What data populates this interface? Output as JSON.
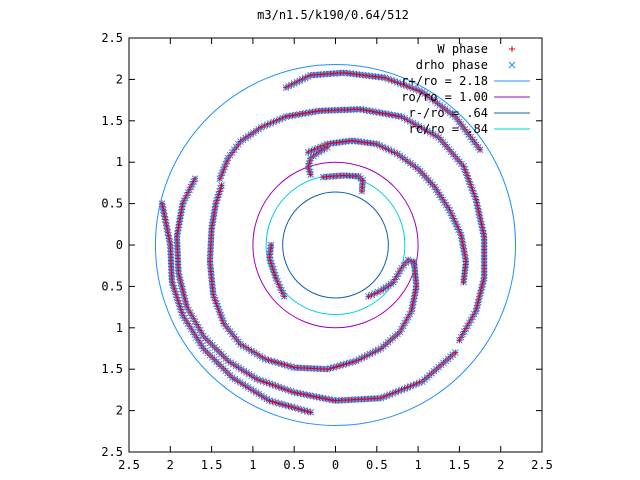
{
  "chart_data": {
    "type": "scatter",
    "title": "m3/n1.5/k190/0.64/512",
    "xlabel": "",
    "ylabel": "",
    "xlim": [
      -2.5,
      2.5
    ],
    "ylim": [
      -2.5,
      2.5
    ],
    "x_ticks": [
      {
        "v": -2.5,
        "label": "2.5"
      },
      {
        "v": -2.0,
        "label": "2"
      },
      {
        "v": -1.5,
        "label": "1.5"
      },
      {
        "v": -1.0,
        "label": "1"
      },
      {
        "v": -0.5,
        "label": "0.5"
      },
      {
        "v": 0.0,
        "label": "0"
      },
      {
        "v": 0.5,
        "label": "0.5"
      },
      {
        "v": 1.0,
        "label": "1"
      },
      {
        "v": 1.5,
        "label": "1.5"
      },
      {
        "v": 2.0,
        "label": "2"
      },
      {
        "v": 2.5,
        "label": "2.5"
      }
    ],
    "y_ticks": [
      {
        "v": 2.5,
        "label": "2.5"
      },
      {
        "v": 2.0,
        "label": "2"
      },
      {
        "v": 1.5,
        "label": "1.5"
      },
      {
        "v": 1.0,
        "label": "1"
      },
      {
        "v": 0.5,
        "label": "0.5"
      },
      {
        "v": 0.0,
        "label": "0"
      },
      {
        "v": -0.5,
        "label": "0.5"
      },
      {
        "v": -1.0,
        "label": "1"
      },
      {
        "v": -1.5,
        "label": "1.5"
      },
      {
        "v": -2.0,
        "label": "2"
      },
      {
        "v": -2.5,
        "label": "2.5"
      }
    ],
    "grid": false,
    "legend_position": "top-right",
    "series": [
      {
        "name": "W phase",
        "marker": "plus",
        "color": "#e0001c"
      },
      {
        "name": "drho phase",
        "marker": "cross",
        "color": "#1f8fff"
      }
    ],
    "circles": [
      {
        "name": "r+/ro = 2.18",
        "radius": 2.18,
        "color": "#1f8fff"
      },
      {
        "name": "ro/ro = 1.00",
        "radius": 1.0,
        "color": "#a000c0"
      },
      {
        "name": "r-/ro = .64",
        "radius": 0.64,
        "color": "#1060b0"
      },
      {
        "name": "rc/ro = .84",
        "radius": 0.84,
        "color": "#00d0d8"
      }
    ],
    "phase_curves": [
      {
        "points": [
          [
            -0.33,
            1.12
          ],
          [
            -0.1,
            1.22
          ],
          [
            0.2,
            1.26
          ],
          [
            0.5,
            1.22
          ],
          [
            0.75,
            1.1
          ],
          [
            1.0,
            0.92
          ],
          [
            1.2,
            0.7
          ],
          [
            1.38,
            0.42
          ],
          [
            1.52,
            0.12
          ],
          [
            1.58,
            -0.2
          ],
          [
            1.55,
            -0.45
          ]
        ]
      },
      {
        "points": [
          [
            -0.3,
            0.85
          ],
          [
            -0.33,
            0.95
          ],
          [
            -0.3,
            1.05
          ],
          [
            -0.2,
            1.12
          ],
          [
            -0.1,
            1.18
          ]
        ]
      },
      {
        "points": [
          [
            -0.15,
            0.82
          ],
          [
            0.1,
            0.84
          ],
          [
            0.28,
            0.83
          ],
          [
            0.33,
            0.78
          ],
          [
            0.32,
            0.65
          ]
        ]
      },
      {
        "points": [
          [
            0.95,
            -0.2
          ],
          [
            0.98,
            -0.5
          ],
          [
            0.92,
            -0.8
          ],
          [
            0.78,
            -1.05
          ],
          [
            0.55,
            -1.25
          ],
          [
            0.25,
            -1.4
          ],
          [
            -0.1,
            -1.5
          ],
          [
            -0.5,
            -1.48
          ],
          [
            -0.85,
            -1.38
          ],
          [
            -1.15,
            -1.2
          ],
          [
            -1.35,
            -0.95
          ],
          [
            -1.48,
            -0.6
          ],
          [
            -1.52,
            -0.2
          ],
          [
            -1.5,
            0.2
          ],
          [
            -1.45,
            0.5
          ],
          [
            -1.38,
            0.72
          ]
        ]
      },
      {
        "points": [
          [
            0.95,
            -0.22
          ],
          [
            0.88,
            -0.18
          ],
          [
            0.8,
            -0.28
          ],
          [
            0.7,
            -0.45
          ],
          [
            0.55,
            -0.55
          ],
          [
            0.4,
            -0.62
          ]
        ]
      },
      {
        "points": [
          [
            -0.62,
            -0.62
          ],
          [
            -0.72,
            -0.4
          ],
          [
            -0.8,
            -0.15
          ],
          [
            -0.78,
            0.0
          ]
        ]
      },
      {
        "points": [
          [
            -1.4,
            0.8
          ],
          [
            -1.3,
            1.05
          ],
          [
            -1.15,
            1.25
          ],
          [
            -0.9,
            1.42
          ],
          [
            -0.6,
            1.55
          ],
          [
            -0.2,
            1.62
          ],
          [
            0.3,
            1.64
          ],
          [
            0.8,
            1.55
          ],
          [
            1.25,
            1.3
          ],
          [
            1.55,
            0.95
          ],
          [
            1.7,
            0.55
          ],
          [
            1.8,
            0.1
          ],
          [
            1.8,
            -0.4
          ],
          [
            1.7,
            -0.8
          ],
          [
            1.5,
            -1.15
          ]
        ]
      },
      {
        "points": [
          [
            -1.7,
            0.8
          ],
          [
            -1.85,
            0.5
          ],
          [
            -1.92,
            0.1
          ],
          [
            -1.9,
            -0.35
          ],
          [
            -1.8,
            -0.75
          ],
          [
            -1.6,
            -1.1
          ],
          [
            -1.3,
            -1.4
          ],
          [
            -0.95,
            -1.62
          ],
          [
            -0.5,
            -1.78
          ],
          [
            0.0,
            -1.88
          ],
          [
            0.55,
            -1.85
          ],
          [
            1.05,
            -1.65
          ],
          [
            1.45,
            -1.3
          ]
        ]
      },
      {
        "points": [
          [
            -0.6,
            1.9
          ],
          [
            -0.3,
            2.05
          ],
          [
            0.1,
            2.08
          ],
          [
            0.6,
            2.02
          ],
          [
            1.05,
            1.85
          ],
          [
            1.45,
            1.55
          ],
          [
            1.75,
            1.15
          ]
        ]
      },
      {
        "points": [
          [
            -2.1,
            0.5
          ],
          [
            -2.0,
            0.0
          ],
          [
            -1.98,
            -0.45
          ],
          [
            -1.85,
            -0.85
          ],
          [
            -1.6,
            -1.25
          ],
          [
            -1.25,
            -1.6
          ],
          [
            -0.8,
            -1.88
          ],
          [
            -0.3,
            -2.02
          ]
        ]
      }
    ]
  }
}
